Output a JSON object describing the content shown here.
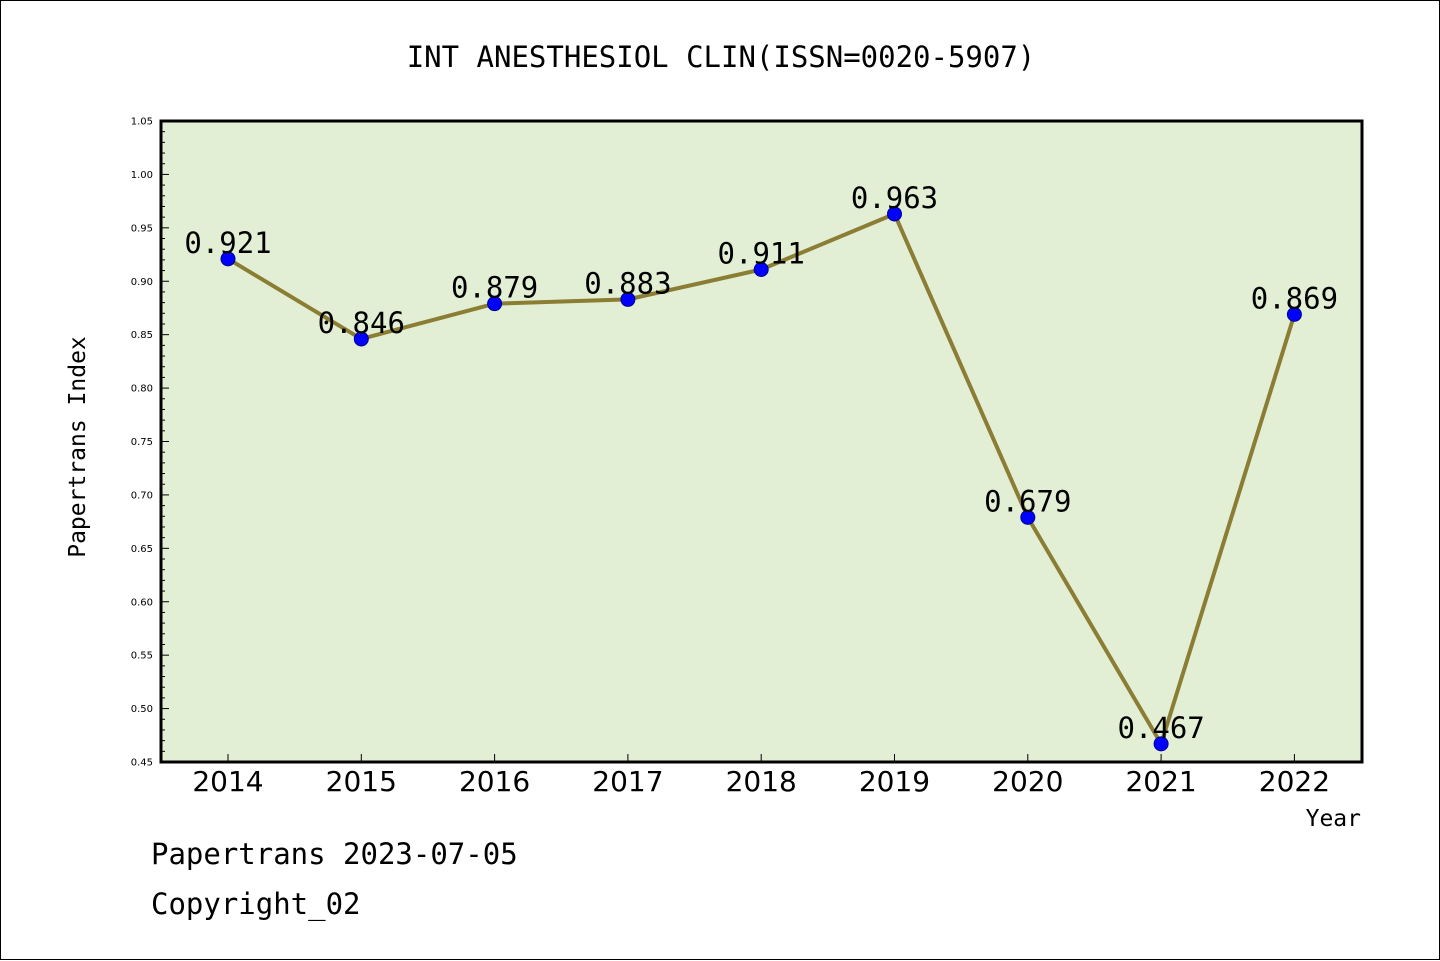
{
  "chart_data": {
    "type": "line",
    "title": "INT ANESTHESIOL CLIN(ISSN=0020-5907)",
    "xlabel": "Year",
    "ylabel": "Papertrans Index",
    "categories": [
      "2014",
      "2015",
      "2016",
      "2017",
      "2018",
      "2019",
      "2020",
      "2021",
      "2022"
    ],
    "values": [
      0.921,
      0.846,
      0.879,
      0.883,
      0.911,
      0.963,
      0.679,
      0.467,
      0.869
    ],
    "data_labels": [
      "0.921",
      "0.846",
      "0.879",
      "0.883",
      "0.911",
      "0.963",
      "0.679",
      "0.467",
      "0.869"
    ],
    "ylim": [
      0.45,
      1.05
    ],
    "yticks": [
      "0.45",
      "0.50",
      "0.55",
      "0.60",
      "0.65",
      "0.70",
      "0.75",
      "0.80",
      "0.85",
      "0.90",
      "0.95",
      "1.00",
      "1.05"
    ],
    "grid": false,
    "colors": {
      "plot_background": "#e2efd5",
      "line": "#8b7d33",
      "marker": "#0000ff"
    }
  },
  "footer": {
    "source": "Papertrans 2023-07-05",
    "copyright": "Copyright_02"
  }
}
